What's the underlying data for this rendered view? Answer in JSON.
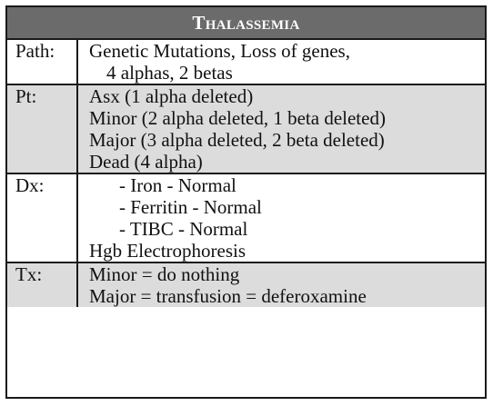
{
  "title": {
    "first_letter": "T",
    "rest": "halassemia"
  },
  "rows": [
    {
      "label": "Path:",
      "lines": [
        "Genetic Mutations, Loss of genes,",
        "4 alphas, 2 betas"
      ]
    },
    {
      "label": "Pt:",
      "lines": [
        "Asx (1 alpha deleted)",
        "Minor (2 alpha deleted, 1 beta deleted)",
        "Major (3 alpha deleted, 2 beta deleted)",
        "Dead (4 alpha)"
      ]
    },
    {
      "label": "Dx:",
      "lines": [
        "- Iron - Normal",
        "- Ferritin - Normal",
        "- TIBC - Normal",
        "Hgb Electrophoresis"
      ]
    },
    {
      "label": "Tx:",
      "lines": [
        "Minor = do nothing",
        "Major = transfusion = deferoxamine"
      ]
    }
  ]
}
